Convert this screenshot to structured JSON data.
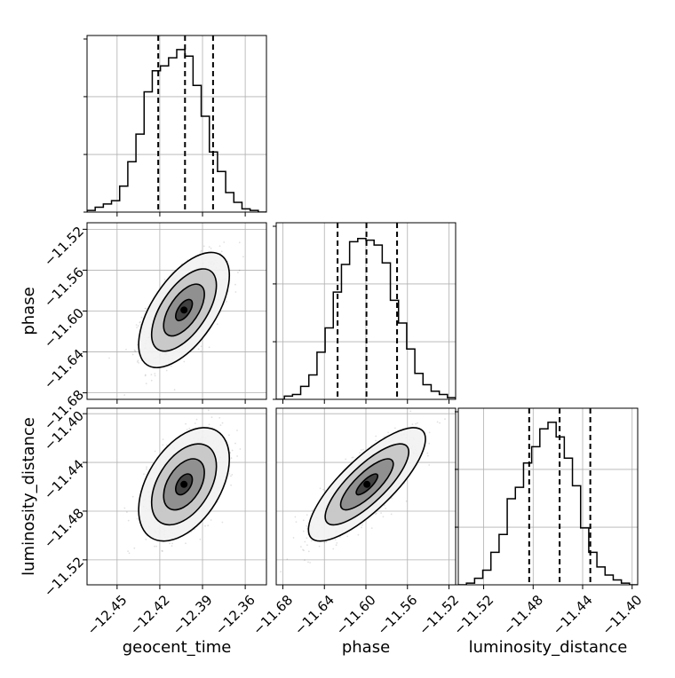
{
  "chart_data": {
    "type": "corner",
    "parameters": [
      "geocent_time",
      "phase",
      "luminosity_distance"
    ],
    "axis_labels": {
      "x": [
        "geocent_time",
        "phase",
        "luminosity_distance"
      ],
      "y": [
        "",
        "phase",
        "luminosity_distance"
      ]
    },
    "ranges": {
      "geocent_time": [
        -12.4711,
        -12.3451
      ],
      "phase": [
        -11.6864,
        -11.5136
      ],
      "luminosity_distance": [
        -11.5405,
        -11.3955
      ]
    },
    "ticks": {
      "geocent_time": [
        -12.45,
        -12.42,
        -12.39,
        -12.36
      ],
      "phase": [
        -11.68,
        -11.64,
        -11.6,
        -11.56,
        -11.52
      ],
      "luminosity_distance": [
        -11.52,
        -11.48,
        -11.44,
        -11.4
      ]
    },
    "tick_labels": {
      "geocent_time": [
        "−12.45",
        "−12.42",
        "−12.39",
        "−12.36"
      ],
      "phase": [
        "−11.68",
        "−11.64",
        "−11.60",
        "−11.56",
        "−11.52"
      ],
      "luminosity_distance": [
        "−11.52",
        "−11.48",
        "−11.44",
        "−11.40"
      ]
    },
    "quantiles": {
      "geocent_time": [
        -12.4211,
        -12.4023,
        -12.3826
      ],
      "phase": [
        -11.6273,
        -11.5995,
        -11.57
      ],
      "luminosity_distance": [
        -11.4832,
        -11.4586,
        -11.4338
      ]
    },
    "histograms": {
      "geocent_time": [
        0.01,
        0.03,
        0.05,
        0.07,
        0.16,
        0.31,
        0.48,
        0.74,
        0.87,
        0.9,
        0.95,
        1.0,
        0.96,
        0.78,
        0.59,
        0.37,
        0.25,
        0.12,
        0.06,
        0.02,
        0.01,
        0.0
      ],
      "phase": [
        0.0,
        0.02,
        0.03,
        0.08,
        0.15,
        0.29,
        0.44,
        0.66,
        0.83,
        0.97,
        0.99,
        0.98,
        0.95,
        0.84,
        0.61,
        0.47,
        0.31,
        0.16,
        0.09,
        0.05,
        0.03,
        0.01
      ],
      "luminosity_distance": [
        0.0,
        0.01,
        0.04,
        0.09,
        0.2,
        0.31,
        0.53,
        0.6,
        0.75,
        0.85,
        0.96,
        1.0,
        0.91,
        0.78,
        0.61,
        0.35,
        0.2,
        0.11,
        0.06,
        0.03,
        0.01,
        0.0
      ]
    },
    "joint": [
      {
        "x": "geocent_time",
        "y": "phase",
        "center": [
          -12.403,
          -11.599
        ],
        "sigma": [
          0.013,
          0.023
        ],
        "rho": 0.6
      },
      {
        "x": "geocent_time",
        "y": "luminosity_distance",
        "center": [
          -12.403,
          -11.458
        ],
        "sigma": [
          0.013,
          0.019
        ],
        "rho": 0.45
      },
      {
        "x": "phase",
        "y": "luminosity_distance",
        "center": [
          -11.599,
          -11.458
        ],
        "sigma": [
          0.023,
          0.019
        ],
        "rho": 0.8
      }
    ],
    "grid": true,
    "colors": {
      "line": "#000000",
      "grid": "#b0b0b0",
      "points": "#000000"
    }
  }
}
